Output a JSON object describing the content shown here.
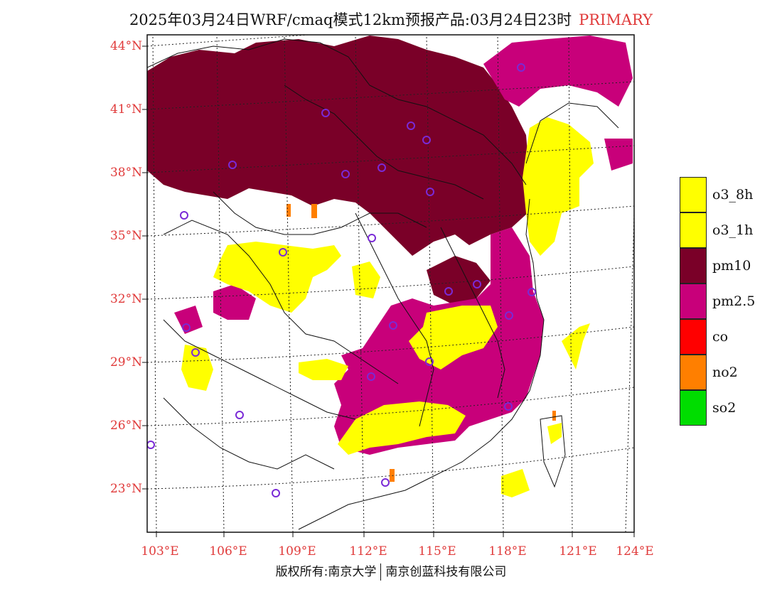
{
  "title": {
    "main": "2025年03月24日WRF/cmaq模式12km预报产品:03月24日23时",
    "tag": "PRIMARY"
  },
  "map": {
    "lat_labels": [
      "44°N",
      "41°N",
      "38°N",
      "35°N",
      "32°N",
      "29°N",
      "26°N",
      "23°N"
    ],
    "lon_labels": [
      "103°E",
      "106°E",
      "109°E",
      "112°E",
      "115°E",
      "118°E",
      "121°E",
      "124°E"
    ]
  },
  "legend": {
    "items": [
      {
        "label": "o3_8h",
        "color": "#ffff00"
      },
      {
        "label": "o3_1h",
        "color": "#ffff00"
      },
      {
        "label": "pm10",
        "color": "#7a0028"
      },
      {
        "label": "pm2.5",
        "color": "#c8007a"
      },
      {
        "label": "co",
        "color": "#ff0000"
      },
      {
        "label": "no2",
        "color": "#ff7f00"
      },
      {
        "label": "so2",
        "color": "#00dd00"
      }
    ]
  },
  "colors": {
    "o3": "#ffff00",
    "pm10": "#7a0028",
    "pm25": "#c8007a",
    "no2": "#ff7f00",
    "station": "#7a2ad6",
    "axis_label": "#e03a3a"
  },
  "footer": {
    "left": "版权所有:南京大学",
    "right": "南京创蓝科技有限公司"
  }
}
